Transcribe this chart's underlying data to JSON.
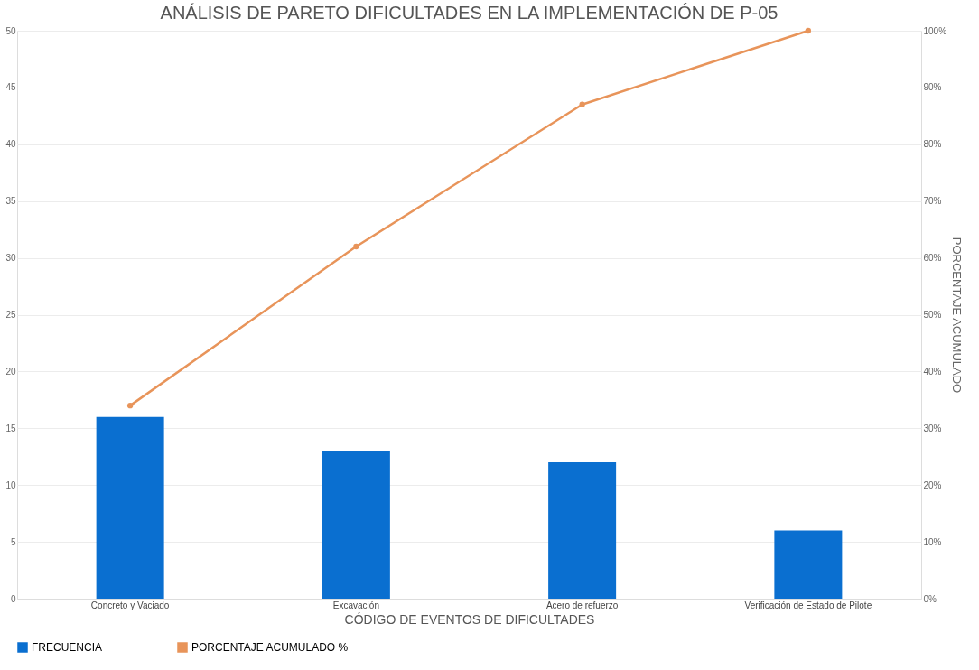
{
  "chart_data": {
    "type": "bar",
    "title": "ANÁLISIS DE PARETO DIFICULTADES EN LA IMPLEMENTACIÓN DE P-05",
    "xlabel": "CÓDIGO DE EVENTOS DE DIFICULTADES",
    "y2label": "PORCENTAJE ACUMULADO",
    "categories": [
      "Concreto y Vaciado",
      "Excavación",
      "Acero de refuerzo",
      "Verificación de Estado de Pilote"
    ],
    "series": [
      {
        "name": "FRECUENCIA",
        "color": "#0a6fd0",
        "values": [
          16,
          13,
          12,
          6
        ]
      },
      {
        "name": "PORCENTAJE ACUMULADO %",
        "type": "line",
        "axis": "y2",
        "color": "#e8945a",
        "marker": "circle",
        "values": [
          34,
          62,
          87,
          100
        ]
      }
    ],
    "ylim": [
      0,
      50
    ],
    "yticks": [
      0,
      5,
      10,
      15,
      20,
      25,
      30,
      35,
      40,
      45,
      50
    ],
    "y2lim": [
      0,
      100
    ],
    "y2ticks": [
      {
        "value": 0,
        "label": "0%"
      },
      {
        "value": 10,
        "label": "10%"
      },
      {
        "value": 20,
        "label": "20%"
      },
      {
        "value": 30,
        "label": "30%"
      },
      {
        "value": 40,
        "label": "40%"
      },
      {
        "value": 50,
        "label": "50%"
      },
      {
        "value": 60,
        "label": "60%"
      },
      {
        "value": 70,
        "label": "70%"
      },
      {
        "value": 80,
        "label": "80%"
      },
      {
        "value": 90,
        "label": "90%"
      },
      {
        "value": 100,
        "label": "100%"
      }
    ],
    "grid": "y",
    "legend": "bottom"
  }
}
